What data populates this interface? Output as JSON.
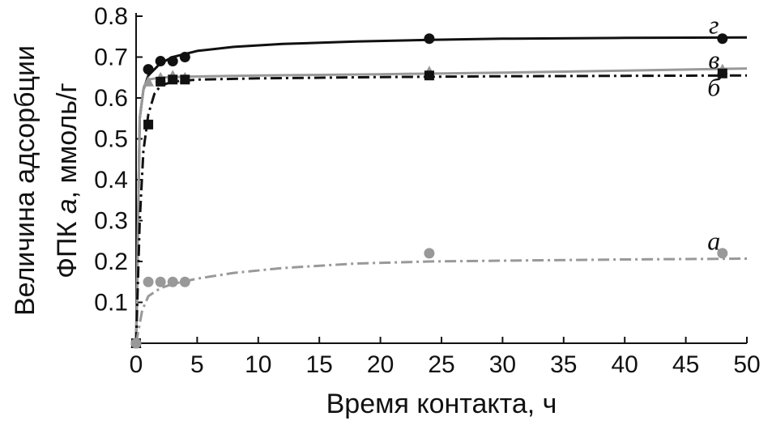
{
  "chart_data": {
    "type": "line",
    "title": "",
    "xlabel": "Время контакта, ч",
    "ylabel_line1": "Величина адсорбции",
    "ylabel_line2_prefix": "ФПК ",
    "ylabel_line2_var": "a",
    "ylabel_line2_suffix": ", ммоль/г",
    "xlim": [
      0,
      50
    ],
    "ylim": [
      0,
      0.8
    ],
    "xticks": [
      0,
      5,
      10,
      15,
      20,
      25,
      30,
      35,
      40,
      45,
      50
    ],
    "yticks": [
      0.1,
      0.2,
      0.3,
      0.4,
      0.5,
      0.6,
      0.7,
      0.8
    ],
    "grid": false,
    "legend": "inline labels at right end of curves",
    "series": [
      {
        "name": "г",
        "marker": "circle",
        "color": "#111111",
        "line_style": "solid",
        "points": [
          [
            0,
            0.0
          ],
          [
            1,
            0.67
          ],
          [
            2,
            0.69
          ],
          [
            3,
            0.69
          ],
          [
            4,
            0.7
          ],
          [
            24,
            0.745
          ],
          [
            48,
            0.745
          ]
        ],
        "curve": [
          [
            0,
            0.0
          ],
          [
            0.3,
            0.55
          ],
          [
            0.6,
            0.62
          ],
          [
            1,
            0.655
          ],
          [
            2,
            0.685
          ],
          [
            3,
            0.7
          ],
          [
            5,
            0.715
          ],
          [
            8,
            0.725
          ],
          [
            12,
            0.732
          ],
          [
            18,
            0.738
          ],
          [
            24,
            0.742
          ],
          [
            30,
            0.745
          ],
          [
            40,
            0.747
          ],
          [
            50,
            0.748
          ]
        ]
      },
      {
        "name": "в",
        "marker": "triangle",
        "color": "#999999",
        "line_style": "solid",
        "points": [
          [
            0,
            0.0
          ],
          [
            1,
            0.64
          ],
          [
            2,
            0.65
          ],
          [
            3,
            0.655
          ],
          [
            4,
            0.65
          ],
          [
            24,
            0.665
          ],
          [
            48,
            0.67
          ]
        ],
        "curve": [
          [
            0,
            0.0
          ],
          [
            0.3,
            0.55
          ],
          [
            0.6,
            0.62
          ],
          [
            1,
            0.645
          ],
          [
            2,
            0.65
          ],
          [
            4,
            0.652
          ],
          [
            10,
            0.655
          ],
          [
            20,
            0.658
          ],
          [
            30,
            0.662
          ],
          [
            40,
            0.667
          ],
          [
            50,
            0.672
          ]
        ]
      },
      {
        "name": "б",
        "marker": "square",
        "color": "#111111",
        "line_style": "dashdot",
        "points": [
          [
            0,
            0.0
          ],
          [
            1,
            0.535
          ],
          [
            2,
            0.64
          ],
          [
            3,
            0.645
          ],
          [
            4,
            0.645
          ],
          [
            24,
            0.655
          ],
          [
            48,
            0.66
          ]
        ],
        "curve": [
          [
            0,
            0.0
          ],
          [
            0.3,
            0.3
          ],
          [
            0.6,
            0.47
          ],
          [
            1,
            0.56
          ],
          [
            1.5,
            0.61
          ],
          [
            2,
            0.63
          ],
          [
            3,
            0.64
          ],
          [
            5,
            0.645
          ],
          [
            10,
            0.648
          ],
          [
            20,
            0.651
          ],
          [
            30,
            0.653
          ],
          [
            40,
            0.654
          ],
          [
            50,
            0.655
          ]
        ]
      },
      {
        "name": "а",
        "marker": "circle",
        "color": "#999999",
        "line_style": "dashdot",
        "points": [
          [
            0,
            0.0
          ],
          [
            1,
            0.15
          ],
          [
            2,
            0.15
          ],
          [
            3,
            0.15
          ],
          [
            4,
            0.15
          ],
          [
            24,
            0.22
          ],
          [
            48,
            0.22
          ]
        ],
        "curve": [
          [
            0,
            0.0
          ],
          [
            0.5,
            0.08
          ],
          [
            1,
            0.115
          ],
          [
            2,
            0.135
          ],
          [
            3,
            0.145
          ],
          [
            5,
            0.158
          ],
          [
            8,
            0.172
          ],
          [
            12,
            0.184
          ],
          [
            18,
            0.195
          ],
          [
            24,
            0.2
          ],
          [
            30,
            0.202
          ],
          [
            40,
            0.205
          ],
          [
            50,
            0.207
          ]
        ]
      }
    ],
    "series_labels": [
      {
        "text": "г",
        "x": 47.3,
        "y": 0.757
      },
      {
        "text": "в",
        "x": 47.3,
        "y": 0.672
      },
      {
        "text": "б",
        "x": 47.3,
        "y": 0.605
      },
      {
        "text": "а",
        "x": 47.3,
        "y": 0.229
      }
    ]
  }
}
